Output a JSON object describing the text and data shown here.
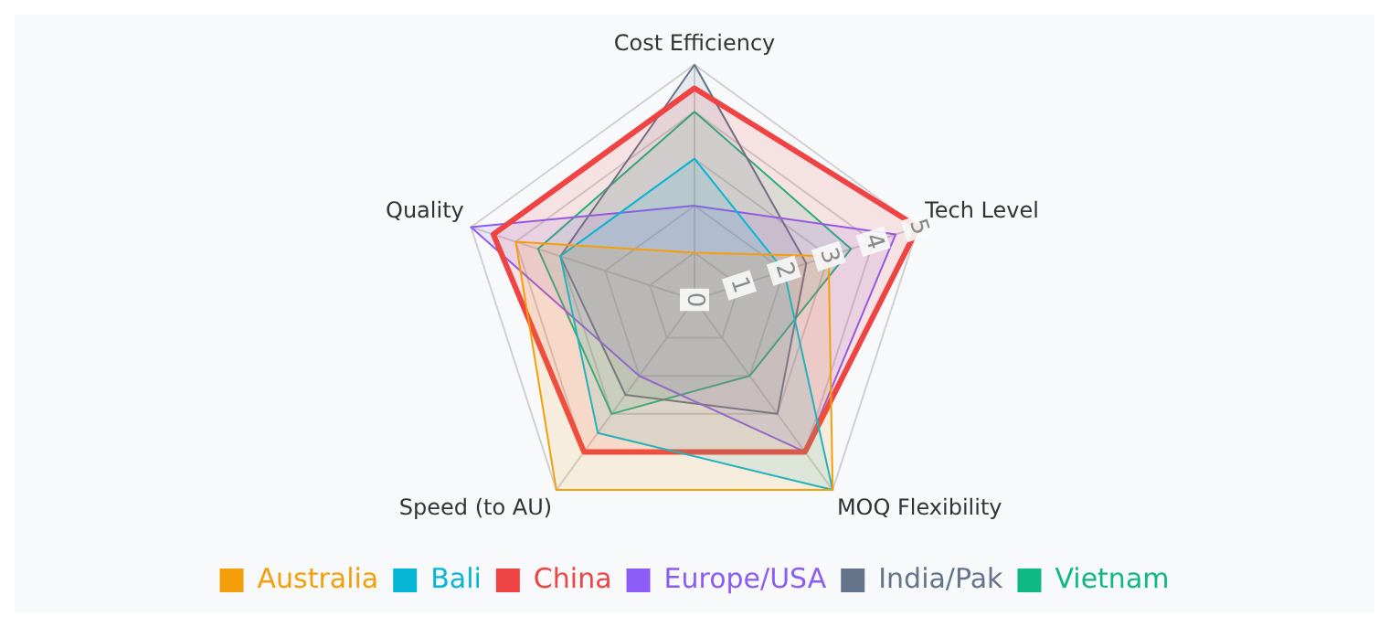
{
  "chart_data": {
    "type": "radar",
    "categories": [
      "Cost Efficiency",
      "Tech Level",
      "MOQ Flexibility",
      "Speed (to AU)",
      "Quality"
    ],
    "series": [
      {
        "name": "Australia",
        "color": "#f59e0b",
        "values": [
          1,
          3,
          5,
          5,
          4
        ]
      },
      {
        "name": "Bali",
        "color": "#06b6d4",
        "values": [
          3,
          2,
          5,
          3.5,
          3
        ]
      },
      {
        "name": "China",
        "color": "#ef4444",
        "values": [
          4.5,
          5,
          4,
          4,
          4.5
        ]
      },
      {
        "name": "Europe/USA",
        "color": "#8b5cf6",
        "values": [
          2,
          4.5,
          4,
          2,
          5
        ]
      },
      {
        "name": "India/Pak",
        "color": "#64748b",
        "values": [
          5,
          2.5,
          3,
          2.5,
          3
        ]
      },
      {
        "name": "Vietnam",
        "color": "#10b981",
        "values": [
          4,
          3.5,
          2,
          3,
          3.5
        ]
      }
    ],
    "ylim": [
      0,
      5
    ],
    "yticks": [
      0,
      1,
      2,
      3,
      4,
      5
    ],
    "legend": "bottom",
    "grid": true
  }
}
